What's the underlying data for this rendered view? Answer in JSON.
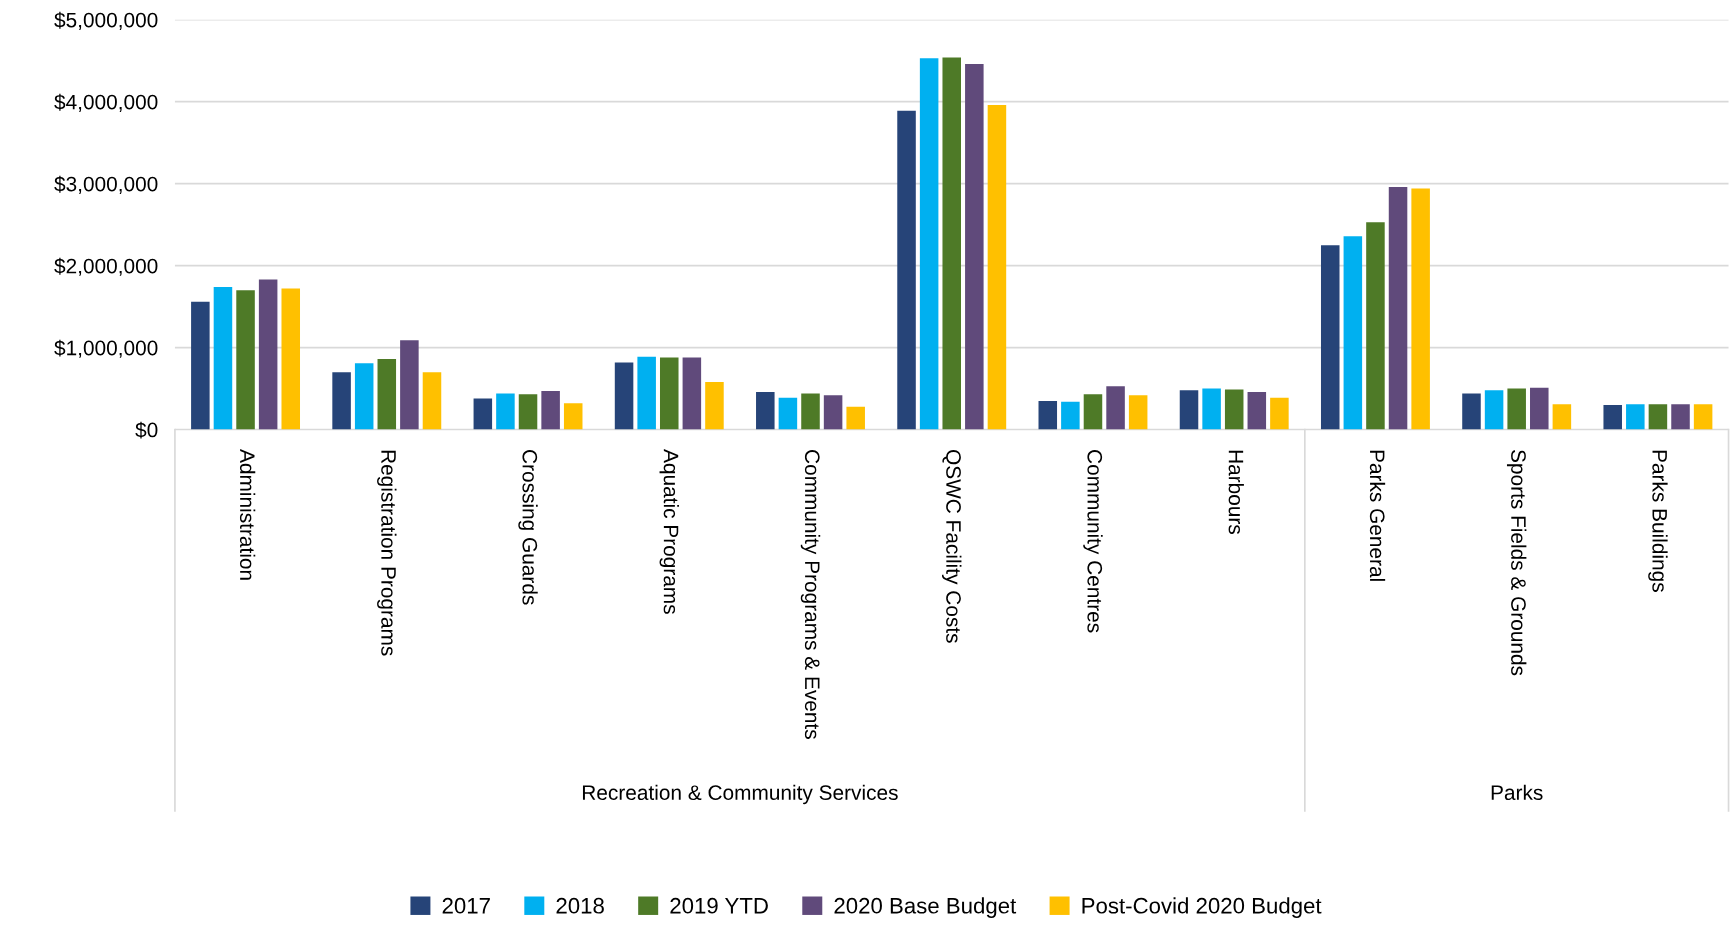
{
  "chart_data": {
    "type": "bar",
    "categories": [
      "Administration",
      "Registration Programs",
      "Crossing Guards",
      "Aquatic Programs",
      "Community Programs & Events",
      "QSWC Facility Costs",
      "Community Centres",
      "Harbours",
      "Parks General",
      "Sports Fields & Grounds",
      "Parks Buildings"
    ],
    "series": [
      {
        "name": "2017",
        "color": "#264478",
        "values": [
          1560000,
          700000,
          380000,
          820000,
          460000,
          3890000,
          350000,
          480000,
          2250000,
          440000,
          300000
        ]
      },
      {
        "name": "2018",
        "color": "#00b0f0",
        "values": [
          1740000,
          810000,
          440000,
          890000,
          390000,
          4530000,
          340000,
          500000,
          2360000,
          480000,
          310000
        ]
      },
      {
        "name": "2019 YTD",
        "color": "#4e7a27",
        "values": [
          1700000,
          860000,
          430000,
          880000,
          440000,
          4540000,
          430000,
          490000,
          2530000,
          500000,
          310000
        ]
      },
      {
        "name": "2020 Base Budget",
        "color": "#604a7b",
        "values": [
          1830000,
          1090000,
          470000,
          880000,
          420000,
          4460000,
          530000,
          460000,
          2960000,
          510000,
          310000
        ]
      },
      {
        "name": "Post-Covid 2020 Budget",
        "color": "#ffc000",
        "values": [
          1720000,
          700000,
          320000,
          580000,
          280000,
          3960000,
          420000,
          390000,
          2940000,
          310000,
          310000
        ]
      }
    ],
    "annotations": [
      "Recreation & Community Services",
      "Parks"
    ],
    "ylim": [
      0,
      5000000
    ],
    "yticks": [
      {
        "value": 0,
        "label": "$0"
      },
      {
        "value": 1000000,
        "label": "$1,000,000"
      },
      {
        "value": 2000000,
        "label": "$2,000,000"
      },
      {
        "value": 3000000,
        "label": "$3,000,000"
      },
      {
        "value": 4000000,
        "label": "$4,000,000"
      },
      {
        "value": 5000000,
        "label": "$5,000,000"
      }
    ],
    "grid": "y",
    "legend": "bottom"
  }
}
